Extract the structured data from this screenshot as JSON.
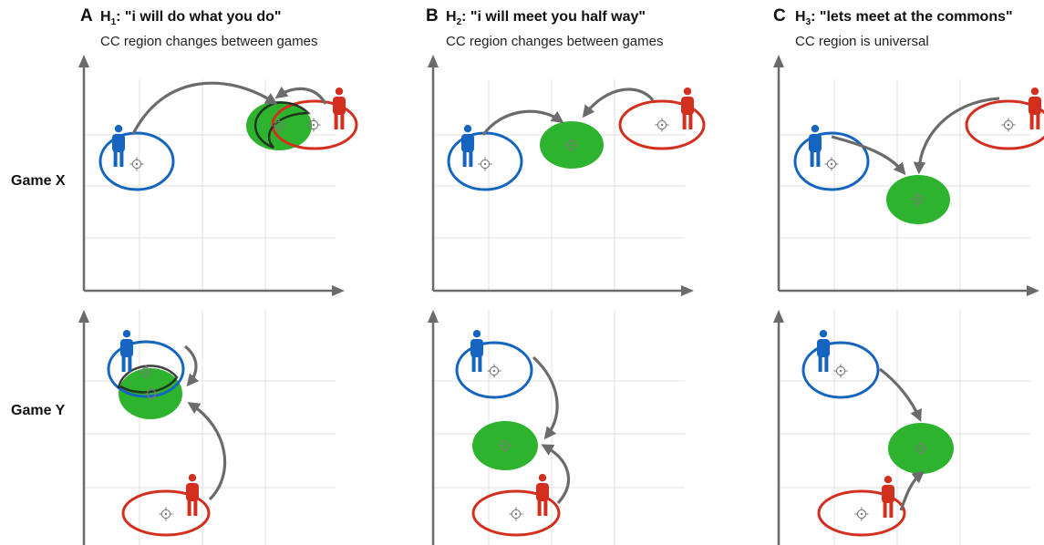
{
  "panels": [
    {
      "letter": "A",
      "h": "H",
      "hsub": "1",
      "quote": ": \"i will do what you do\"",
      "subtitle": "CC region changes between games"
    },
    {
      "letter": "B",
      "h": "H",
      "hsub": "2",
      "quote": ": \"i will meet you half way\"",
      "subtitle": "CC region changes between games"
    },
    {
      "letter": "C",
      "h": "H",
      "hsub": "3",
      "quote": ": \"lets meet at the commons\"",
      "subtitle": "CC region is universal"
    }
  ],
  "rows": {
    "game_x": "Game X",
    "game_y": "Game Y"
  },
  "colors": {
    "blue": "#1565c0",
    "red": "#d32f1f",
    "green": "#2db32d",
    "arrow": "#6b6b6b",
    "axis": "#6b6b6b",
    "grid": "#e2e2e2"
  },
  "icons": [
    "blue-person-icon",
    "red-person-icon",
    "target-icon"
  ]
}
